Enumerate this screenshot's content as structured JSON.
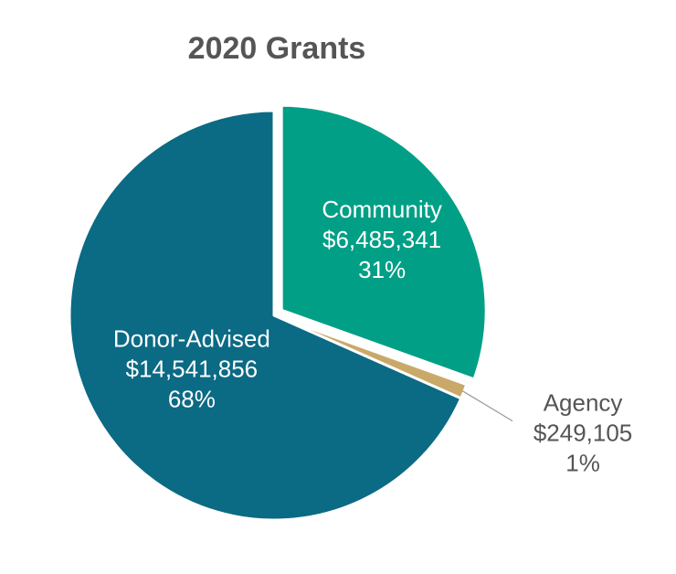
{
  "chart_data": {
    "type": "pie",
    "title": "2020 Grants",
    "slices": [
      {
        "label": "Community",
        "value": 6485341,
        "value_text": "$6,485,341",
        "percent_text": "31%",
        "color": "#009F86"
      },
      {
        "label": "Agency",
        "value": 249105,
        "value_text": "$249,105",
        "percent_text": "1%",
        "color": "#C9A96A"
      },
      {
        "label": "Donor-Advised",
        "value": 14541856,
        "value_text": "$14,541,856",
        "percent_text": "68%",
        "color": "#0B6A84"
      }
    ],
    "start_angle_deg": 0,
    "direction": "clockwise",
    "exploded_slice": "Community",
    "label_placement": "inside; Agency label outside right with leader line"
  }
}
